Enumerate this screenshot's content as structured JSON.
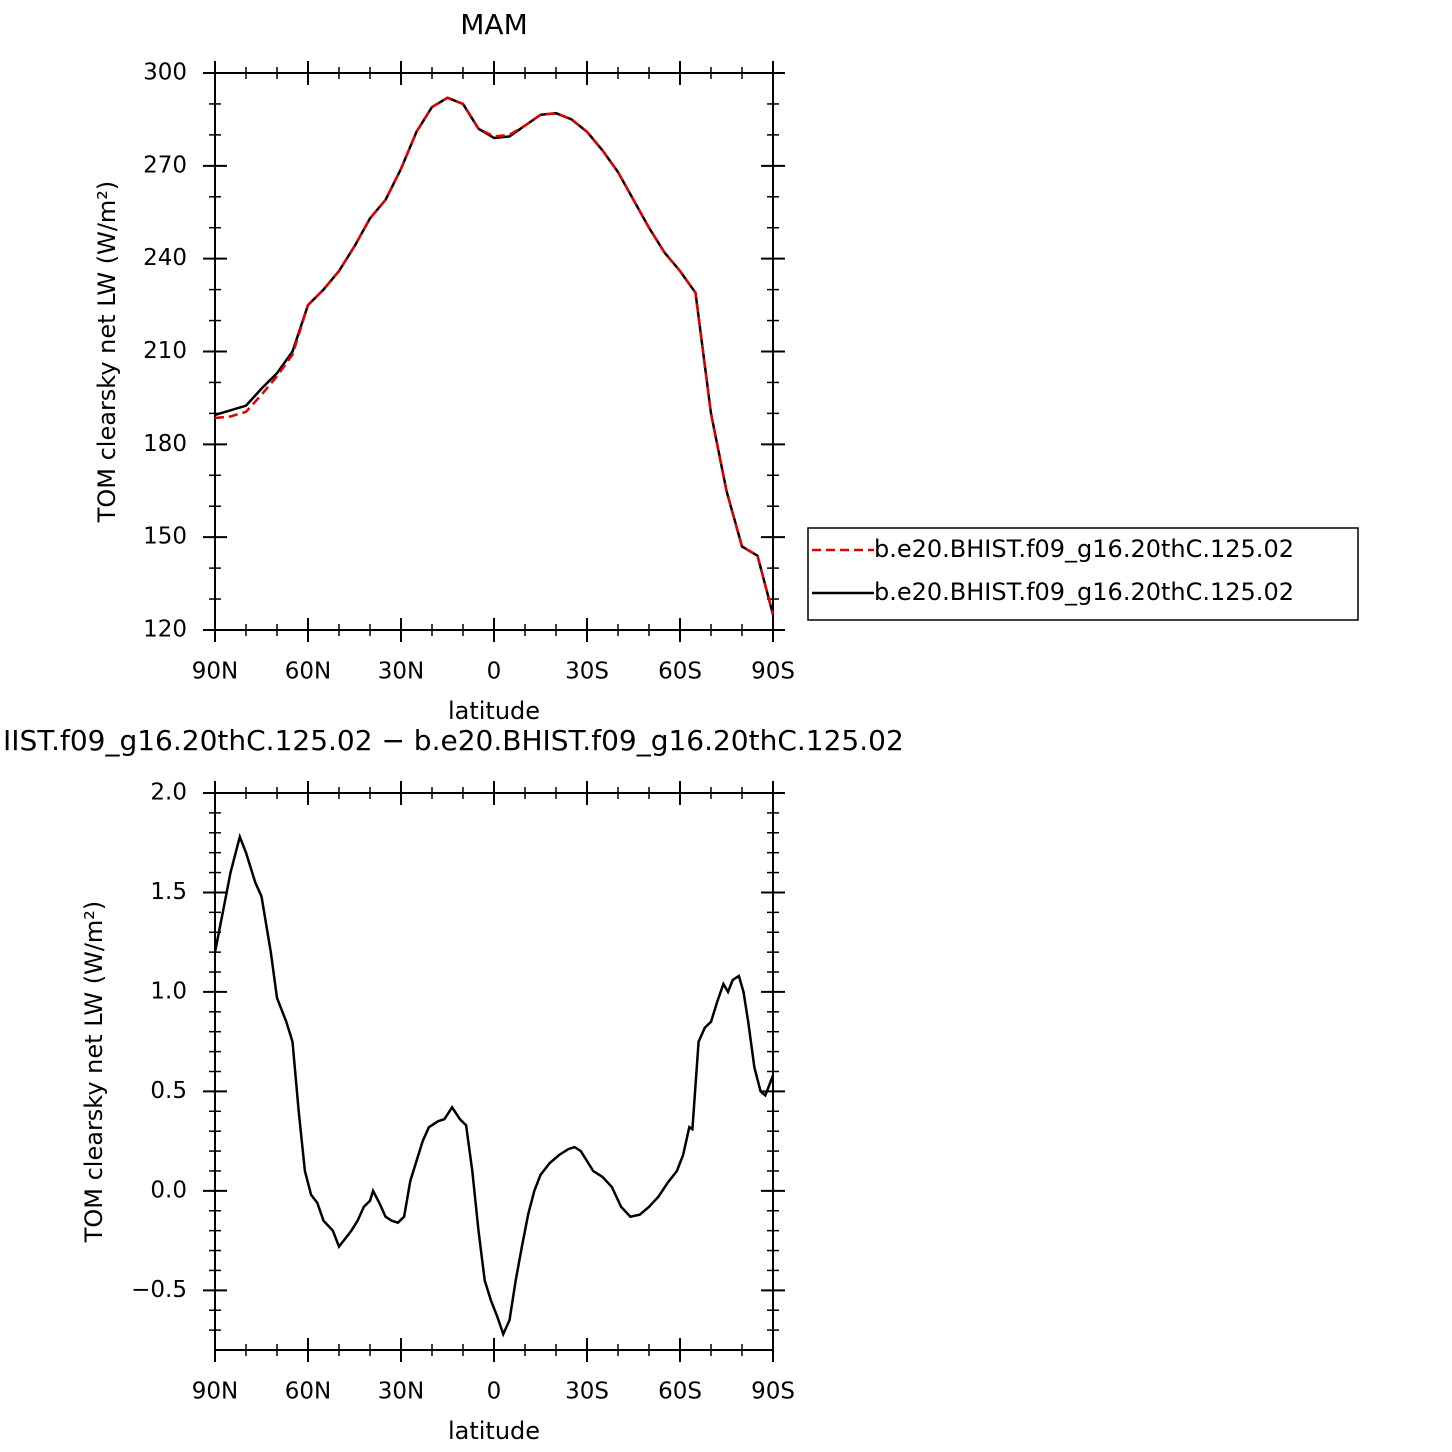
{
  "chart_data": [
    {
      "type": "line",
      "title": "MAM",
      "xlabel": "latitude",
      "ylabel": "TOM clearsky net LW (W/m²)",
      "xlim": [
        90,
        -90
      ],
      "ylim": [
        120,
        300
      ],
      "xticks": [
        {
          "value": 90,
          "label": "90N"
        },
        {
          "value": 60,
          "label": "60N"
        },
        {
          "value": 30,
          "label": "30N"
        },
        0,
        {
          "value": -30,
          "label": "30S"
        },
        {
          "value": -60,
          "label": "60S"
        },
        {
          "value": -90,
          "label": "90S"
        }
      ],
      "yticks": [
        120,
        150,
        180,
        210,
        240,
        270,
        300
      ],
      "xminorticks": [
        80,
        70,
        50,
        40,
        20,
        10,
        -10,
        -20,
        -40,
        -50,
        -70,
        -80
      ],
      "yminorticks": [
        130,
        140,
        160,
        170,
        190,
        200,
        220,
        230,
        250,
        260,
        280,
        290
      ],
      "x": [
        90,
        85,
        80,
        75,
        70,
        65,
        60,
        55,
        50,
        45,
        40,
        35,
        30,
        25,
        20,
        15,
        10,
        5,
        0,
        -5,
        -10,
        -15,
        -20,
        -25,
        -30,
        -35,
        -40,
        -45,
        -50,
        -55,
        -60,
        -65,
        -70,
        -75,
        -80,
        -85,
        -90
      ],
      "series": [
        {
          "name": "b.e20.BHIST.f09_g16.20thC.125.02",
          "color": "#e00000",
          "linestyle": "dashed",
          "values": [
            188.5,
            189,
            190.5,
            196,
            202,
            209,
            225,
            230,
            236,
            244,
            253,
            259,
            269,
            281,
            289,
            292,
            290,
            282,
            279.5,
            280,
            283,
            286.5,
            287,
            285,
            281,
            275,
            268,
            259,
            250,
            242,
            236,
            229,
            190,
            165,
            147,
            144,
            125
          ]
        },
        {
          "name": "b.e20.BHIST.f09_g16.20thC.125.02",
          "color": "#000000",
          "linestyle": "solid",
          "values": [
            189.5,
            191,
            192.5,
            198,
            203,
            210,
            225,
            230,
            236,
            244,
            253,
            259,
            269,
            281,
            289,
            292,
            290,
            282,
            279,
            279.5,
            283,
            286.5,
            287,
            285,
            281,
            275,
            268,
            259,
            250,
            242,
            236,
            229,
            190,
            165,
            147,
            144,
            125
          ]
        }
      ]
    },
    {
      "type": "line",
      "title": "IIST.f09_g16.20thC.125.02 − b.e20.BHIST.f09_g16.20thC.125.02",
      "xlabel": "latitude",
      "ylabel": "TOM clearsky net LW (W/m²)",
      "xlim": [
        90,
        -90
      ],
      "ylim": [
        -0.8,
        2.0
      ],
      "xticks": [
        {
          "value": 90,
          "label": "90N"
        },
        {
          "value": 60,
          "label": "60N"
        },
        {
          "value": 30,
          "label": "30N"
        },
        0,
        {
          "value": -30,
          "label": "30S"
        },
        {
          "value": -60,
          "label": "60S"
        },
        {
          "value": -90,
          "label": "90S"
        }
      ],
      "yticks": [
        {
          "value": -0.5,
          "label": "−0.5"
        },
        {
          "value": 0,
          "label": "0.0"
        },
        0.5,
        {
          "value": 1,
          "label": "1.0"
        },
        1.5,
        {
          "value": 2,
          "label": "2.0"
        }
      ],
      "xminorticks": [
        80,
        70,
        50,
        40,
        20,
        10,
        -10,
        -20,
        -40,
        -50,
        -70,
        -80
      ],
      "yminorticks": [
        -0.7,
        -0.6,
        -0.4,
        -0.3,
        -0.2,
        -0.1,
        0.1,
        0.2,
        0.3,
        0.4,
        0.6,
        0.7,
        0.8,
        0.9,
        1.1,
        1.2,
        1.3,
        1.4,
        1.6,
        1.7,
        1.8,
        1.9
      ],
      "x": [
        90,
        87.5,
        85,
        82,
        80,
        77,
        75,
        72,
        70,
        67,
        65,
        63,
        61,
        59,
        57,
        55,
        52,
        50,
        48,
        46,
        44,
        42,
        40,
        39,
        37,
        35,
        33,
        31,
        29,
        27,
        25,
        23,
        21,
        18,
        16,
        13.5,
        11,
        9,
        7,
        5,
        3,
        1,
        -1,
        -3,
        -5,
        -7,
        -9,
        -11,
        -13,
        -15,
        -18,
        -21,
        -24,
        -26,
        -28,
        -30,
        -32,
        -35,
        -38,
        -41,
        -44,
        -47,
        -50,
        -53,
        -56,
        -59,
        -61,
        -63,
        -64,
        -66,
        -68,
        -70,
        -72,
        -74,
        -75.5,
        -77,
        -79,
        -80.5,
        -82,
        -84,
        -86,
        -87.5,
        -90
      ],
      "series": [
        {
          "color": "#000000",
          "linestyle": "solid",
          "values": [
            1.2,
            1.4,
            1.6,
            1.78,
            1.7,
            1.55,
            1.48,
            1.2,
            0.97,
            0.85,
            0.75,
            0.4,
            0.1,
            -0.02,
            -0.06,
            -0.15,
            -0.2,
            -0.28,
            -0.24,
            -0.2,
            -0.15,
            -0.08,
            -0.05,
            0.0,
            -0.06,
            -0.13,
            -0.15,
            -0.16,
            -0.13,
            0.05,
            0.15,
            0.25,
            0.32,
            0.35,
            0.36,
            0.42,
            0.36,
            0.33,
            0.1,
            -0.2,
            -0.45,
            -0.55,
            -0.63,
            -0.72,
            -0.65,
            -0.45,
            -0.28,
            -0.12,
            0.0,
            0.08,
            0.14,
            0.18,
            0.21,
            0.22,
            0.2,
            0.15,
            0.1,
            0.07,
            0.02,
            -0.08,
            -0.13,
            -0.12,
            -0.08,
            -0.03,
            0.04,
            0.1,
            0.18,
            0.32,
            0.31,
            0.75,
            0.82,
            0.85,
            0.95,
            1.04,
            1.0,
            1.06,
            1.08,
            1.0,
            0.85,
            0.62,
            0.5,
            0.48,
            0.58
          ]
        }
      ]
    }
  ]
}
